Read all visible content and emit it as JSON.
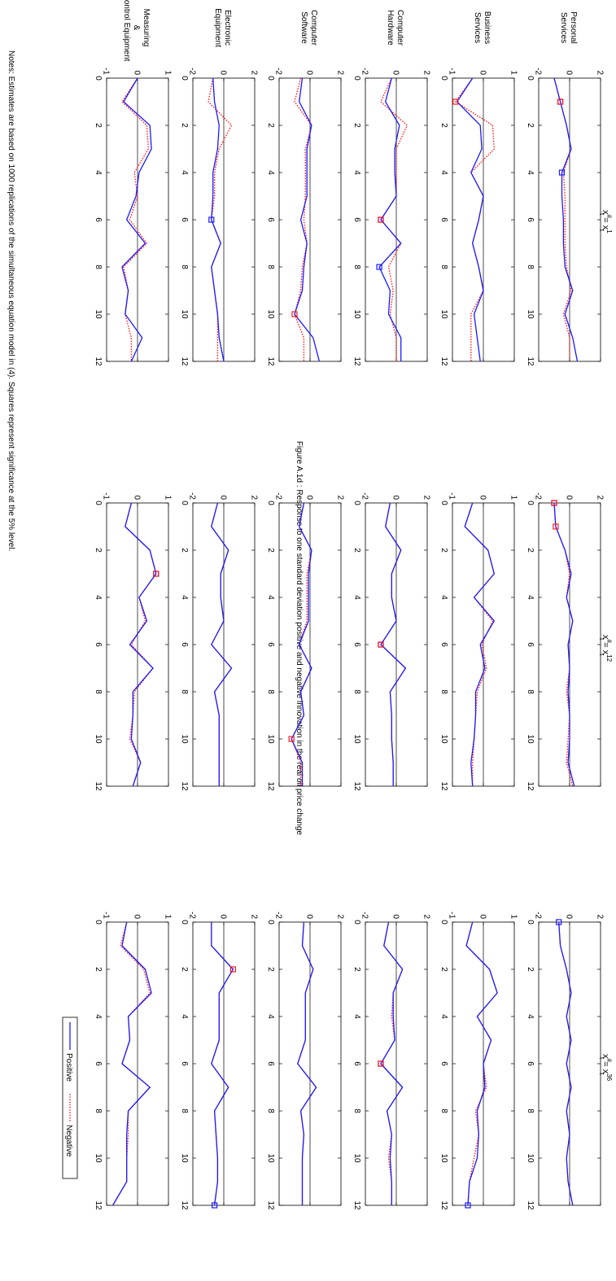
{
  "page": {
    "title": "Figure A.1d : Response to one standard deviation positive and negative innovation in the real oil price change",
    "notes": "Notes: Estimates are based on 1000 replications of the simultaneous equation model in (4). Squares represent significance at the 5% level."
  },
  "legend": {
    "placement": "bottom-right",
    "items": [
      {
        "label": "Positive",
        "color": "#1a1aff",
        "style": "solid"
      },
      {
        "label": "Negative",
        "color": "#ff1a1a",
        "style": "dotted"
      }
    ]
  },
  "chart_data": {
    "type": "line",
    "rotated": true,
    "x": [
      0,
      1,
      2,
      3,
      4,
      5,
      6,
      7,
      8,
      9,
      10,
      11,
      12
    ],
    "x_ticks": [
      "0",
      "2",
      "4",
      "6",
      "8",
      "10",
      "12"
    ],
    "xlim": [
      0,
      12
    ],
    "columns": [
      {
        "base": "x",
        "hash": "#",
        "t": "t",
        "sup": "1"
      },
      {
        "base": "x",
        "hash": "#",
        "t": "t",
        "sup": "12"
      },
      {
        "base": "x",
        "hash": "#",
        "t": "t",
        "sup": "36"
      }
    ],
    "rows": [
      {
        "label_lines": [
          "Personal",
          "Services"
        ],
        "ylim": [
          -2,
          2
        ],
        "yticks": [
          "-2",
          "0",
          "2"
        ]
      },
      {
        "label_lines": [
          "Business",
          "Services"
        ],
        "ylim": [
          -1,
          1
        ],
        "yticks": [
          "-1",
          "0",
          "1"
        ]
      },
      {
        "label_lines": [
          "Computer",
          "Hardware"
        ],
        "ylim": [
          -2,
          2
        ],
        "yticks": [
          "-2",
          "0",
          "2"
        ]
      },
      {
        "label_lines": [
          "Computer",
          "Software"
        ],
        "ylim": [
          -2,
          2
        ],
        "yticks": [
          "-2",
          "0",
          "2"
        ]
      },
      {
        "label_lines": [
          "Electronic",
          "Equipment"
        ],
        "ylim": [
          -2,
          2
        ],
        "yticks": [
          "-2",
          "0",
          "2"
        ]
      },
      {
        "label_lines": [
          "Measuring",
          "&",
          "Control Equipment"
        ],
        "ylim": [
          -1,
          1
        ],
        "yticks": [
          "-1",
          "0",
          "1"
        ]
      }
    ],
    "panels": [
      [
        {
          "pos": [
            -1.0,
            -0.6,
            -0.2,
            0.1,
            -0.5,
            -0.5,
            -0.4,
            -0.4,
            -0.3,
            0.2,
            -0.3,
            0.2,
            0.5
          ],
          "neg": [
            -1.0,
            -0.6,
            -0.2,
            0.1,
            -0.4,
            -0.3,
            -0.3,
            -0.3,
            -0.2,
            0.1,
            -0.4,
            0.0,
            0.0
          ],
          "sig_pos": [
            1,
            4
          ],
          "sig_neg": [
            1
          ]
        },
        {
          "pos": [
            -0.35,
            -0.85,
            -0.1,
            -0.05,
            -0.4,
            0.0,
            -0.15,
            -0.35,
            -0.15,
            0.0,
            -0.3,
            -0.2,
            -0.1
          ],
          "neg": [
            -0.35,
            -0.9,
            0.3,
            0.35,
            -0.4,
            0.0,
            -0.15,
            -0.35,
            -0.15,
            0.0,
            -0.4,
            -0.4,
            -0.4
          ],
          "sig_pos": [],
          "sig_neg": [
            1
          ]
        },
        {
          "pos": [
            -0.3,
            -0.7,
            0.2,
            -0.1,
            -0.1,
            0.0,
            -1.0,
            0.3,
            -1.1,
            -0.4,
            -0.5,
            0.3,
            0.3
          ],
          "neg": [
            -0.3,
            -1.0,
            0.7,
            0.0,
            0.0,
            0.0,
            -1.0,
            0.3,
            -0.5,
            -0.2,
            -0.4,
            0.0,
            0.0
          ],
          "sig_pos": [
            6,
            8
          ],
          "sig_neg": [
            6
          ]
        },
        {
          "pos": [
            -0.5,
            -0.7,
            0.1,
            -0.2,
            -0.2,
            -0.2,
            -0.6,
            -0.2,
            -0.4,
            -0.5,
            -1.0,
            0.2,
            0.6
          ],
          "neg": [
            -0.6,
            -1.0,
            0.1,
            -0.3,
            -0.3,
            -0.3,
            -0.4,
            -0.2,
            -0.5,
            -0.6,
            -1.0,
            -0.4,
            -0.4
          ],
          "sig_pos": [],
          "sig_neg": [
            10
          ]
        },
        {
          "pos": [
            -0.7,
            -0.6,
            -0.3,
            -0.4,
            -0.7,
            -0.7,
            -0.8,
            -0.2,
            -0.8,
            -0.6,
            -0.4,
            -0.3,
            0.0
          ],
          "neg": [
            -0.7,
            -1.0,
            0.5,
            -0.3,
            -0.6,
            -0.6,
            -0.8,
            -0.2,
            -0.8,
            -0.6,
            -0.4,
            -0.4,
            -0.4
          ],
          "sig_pos": [
            6
          ],
          "sig_neg": []
        },
        {
          "pos": [
            0.0,
            -0.45,
            0.4,
            0.45,
            0.05,
            -0.05,
            -0.35,
            0.25,
            -0.5,
            -0.3,
            -0.4,
            0.15,
            -0.2
          ],
          "neg": [
            0.0,
            -0.5,
            0.3,
            0.35,
            -0.1,
            0.0,
            -0.25,
            0.3,
            -0.45,
            -0.3,
            -0.4,
            -0.2,
            -0.2
          ],
          "sig_pos": [],
          "sig_neg": []
        }
      ],
      [
        {
          "pos": [
            -1.0,
            -0.9,
            -0.3,
            0.1,
            -0.2,
            0.2,
            -0.1,
            0.0,
            -0.1,
            0.0,
            0.0,
            -0.1,
            0.3
          ],
          "neg": [
            -1.0,
            -0.9,
            -0.3,
            0.0,
            -0.2,
            0.2,
            -0.1,
            0.0,
            -0.2,
            0.0,
            -0.1,
            -0.2,
            0.2
          ],
          "sig_pos": [
            0
          ],
          "sig_neg": [
            0,
            1
          ]
        },
        {
          "pos": [
            -0.35,
            -0.6,
            0.15,
            0.35,
            -0.3,
            0.35,
            -0.1,
            0.05,
            -0.25,
            -0.25,
            -0.3,
            -0.4,
            -0.35
          ],
          "neg": [
            -0.35,
            -0.6,
            0.15,
            0.35,
            -0.3,
            0.3,
            -0.05,
            0.1,
            -0.2,
            -0.25,
            -0.3,
            -0.35,
            -0.35
          ],
          "sig_pos": [],
          "sig_neg": []
        },
        {
          "pos": [
            -0.4,
            -0.7,
            0.3,
            -0.3,
            -0.3,
            0.0,
            -1.0,
            0.6,
            -0.4,
            -0.3,
            -0.3,
            -0.2,
            -0.2
          ],
          "neg": [
            -0.4,
            -0.7,
            0.3,
            -0.3,
            -0.3,
            0.0,
            -1.0,
            0.6,
            -0.4,
            -0.3,
            -0.3,
            -0.2,
            -0.2
          ],
          "sig_pos": [
            6
          ],
          "sig_neg": [
            6
          ]
        },
        {
          "pos": [
            -0.4,
            -0.7,
            0.1,
            -0.1,
            -0.1,
            -0.1,
            -0.7,
            0.1,
            -0.6,
            -0.4,
            -1.2,
            -0.5,
            -0.5
          ],
          "neg": [
            -0.4,
            -0.7,
            0.1,
            -0.2,
            -0.2,
            -0.2,
            -0.7,
            0.1,
            -0.6,
            -0.4,
            -1.2,
            -0.6,
            -0.6
          ],
          "sig_pos": [],
          "sig_neg": [
            10
          ]
        },
        {
          "pos": [
            -0.4,
            -0.8,
            0.3,
            -0.2,
            -0.2,
            0.0,
            -0.8,
            0.5,
            -0.6,
            -0.3,
            -0.3,
            -0.3,
            -0.3
          ],
          "neg": [
            -0.4,
            -0.8,
            0.3,
            -0.2,
            -0.2,
            0.0,
            -0.8,
            0.5,
            -0.6,
            -0.3,
            -0.3,
            -0.3,
            -0.3
          ],
          "sig_pos": [],
          "sig_neg": []
        },
        {
          "pos": [
            -0.2,
            -0.4,
            0.4,
            0.6,
            0.05,
            0.3,
            -0.25,
            0.5,
            -0.15,
            -0.15,
            -0.2,
            0.1,
            -0.15
          ],
          "neg": [
            -0.2,
            -0.4,
            0.4,
            0.6,
            0.05,
            0.25,
            -0.2,
            0.5,
            -0.1,
            -0.15,
            -0.25,
            0.1,
            -0.15
          ],
          "sig_pos": [
            3
          ],
          "sig_neg": [
            3
          ]
        }
      ],
      [
        {
          "pos": [
            -0.7,
            -0.6,
            -0.2,
            0.1,
            -0.2,
            0.1,
            -0.2,
            0.1,
            -0.2,
            0.0,
            -0.2,
            -0.1,
            0.2
          ],
          "neg": [
            -0.7,
            -0.6,
            -0.2,
            0.1,
            -0.2,
            0.1,
            -0.2,
            0.1,
            -0.2,
            0.0,
            -0.2,
            -0.1,
            0.2
          ],
          "sig_pos": [
            0
          ],
          "sig_neg": []
        },
        {
          "pos": [
            -0.35,
            -0.55,
            0.2,
            0.45,
            -0.2,
            0.25,
            0.0,
            0.05,
            -0.2,
            -0.15,
            -0.2,
            -0.45,
            -0.5
          ],
          "neg": [
            -0.35,
            -0.55,
            0.2,
            0.45,
            -0.2,
            0.25,
            0.0,
            0.1,
            -0.25,
            -0.15,
            -0.3,
            -0.45,
            -0.5
          ],
          "sig_pos": [
            12
          ],
          "sig_neg": []
        },
        {
          "pos": [
            -0.5,
            -0.8,
            0.4,
            -0.2,
            -0.2,
            -0.1,
            -1.0,
            0.4,
            -0.6,
            -0.3,
            -0.4,
            -0.3,
            -0.3
          ],
          "neg": [
            -0.5,
            -0.8,
            0.4,
            -0.2,
            -0.3,
            -0.1,
            -1.0,
            0.4,
            -0.6,
            -0.3,
            -0.5,
            -0.3,
            -0.3
          ],
          "sig_pos": [
            6
          ],
          "sig_neg": [
            6
          ]
        },
        {
          "pos": [
            -0.4,
            -0.5,
            0.2,
            -0.3,
            -0.3,
            -0.3,
            -0.8,
            0.4,
            -0.6,
            -0.4,
            -0.5,
            -0.5,
            -0.5
          ],
          "neg": [
            -0.4,
            -0.5,
            0.2,
            -0.3,
            -0.3,
            -0.3,
            -0.8,
            0.4,
            -0.6,
            -0.4,
            -0.5,
            -0.5,
            -0.5
          ],
          "sig_pos": [],
          "sig_neg": []
        },
        {
          "pos": [
            -0.8,
            -0.8,
            0.6,
            -0.3,
            -0.3,
            -0.3,
            -0.8,
            0.3,
            -0.6,
            -0.5,
            -0.4,
            -0.4,
            -0.6
          ],
          "neg": [
            -0.8,
            -0.8,
            0.6,
            -0.3,
            -0.3,
            -0.3,
            -0.8,
            0.3,
            -0.6,
            -0.5,
            -0.4,
            -0.4,
            -0.6
          ],
          "sig_pos": [
            12
          ],
          "sig_neg": [
            2
          ]
        },
        {
          "pos": [
            -0.35,
            -0.5,
            0.25,
            0.45,
            -0.3,
            -0.25,
            -0.5,
            0.4,
            -0.3,
            -0.35,
            -0.35,
            -0.35,
            -0.8
          ],
          "neg": [
            -0.35,
            -0.55,
            0.2,
            0.4,
            -0.3,
            -0.25,
            -0.5,
            0.4,
            -0.3,
            -0.3,
            -0.35,
            -0.35,
            -0.8
          ],
          "sig_pos": [],
          "sig_neg": []
        }
      ]
    ]
  }
}
